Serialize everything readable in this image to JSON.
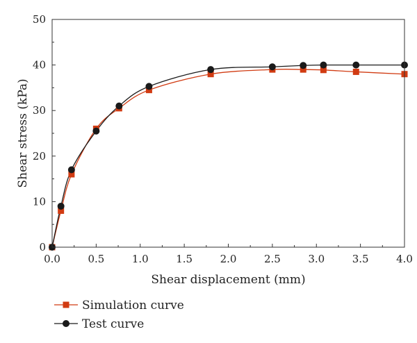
{
  "chart_data": {
    "type": "line",
    "xlabel": "Shear displacement (mm)",
    "ylabel": "Shear stress (kPa)",
    "xlim": [
      0,
      4.0
    ],
    "ylim": [
      0,
      50
    ],
    "x_ticks": [
      "0.0",
      "0.5",
      "1.0",
      "1.5",
      "2.0",
      "2.5",
      "3.0",
      "3.5",
      "4.0"
    ],
    "y_ticks": [
      "0",
      "10",
      "20",
      "30",
      "40",
      "50"
    ],
    "grid": false,
    "legend_position": "bottom-left",
    "series": [
      {
        "name": "Simulation curve",
        "color": "#d13b12",
        "marker": "square",
        "x": [
          0.0,
          0.1,
          0.22,
          0.5,
          0.76,
          1.1,
          1.8,
          2.5,
          2.85,
          3.08,
          3.45,
          4.0
        ],
        "y": [
          0,
          8,
          16,
          26,
          30.5,
          34.5,
          38,
          39,
          39,
          38.9,
          38.5,
          38
        ]
      },
      {
        "name": "Test curve",
        "color": "#1a1a1a",
        "marker": "circle",
        "x": [
          0.0,
          0.1,
          0.22,
          0.5,
          0.76,
          1.1,
          1.8,
          2.5,
          2.85,
          3.08,
          3.45,
          4.0
        ],
        "y": [
          0,
          9,
          17,
          25.5,
          31,
          35.3,
          39,
          39.6,
          39.9,
          40,
          40,
          40
        ]
      }
    ]
  }
}
